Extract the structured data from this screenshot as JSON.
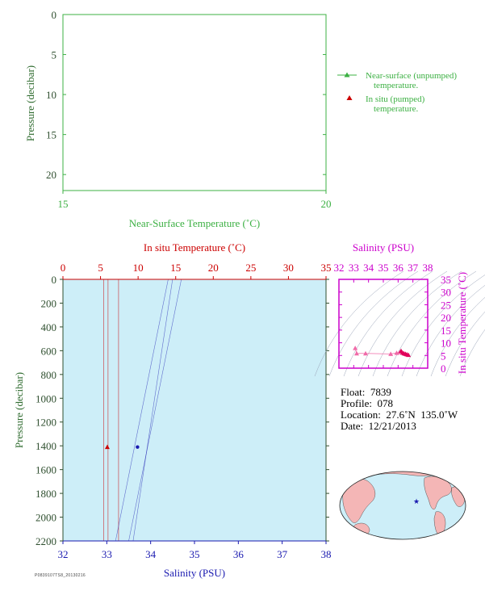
{
  "colors": {
    "green": "#3cb043",
    "red": "#cc0000",
    "blue": "#1a1ab0",
    "magenta": "#cc00cc",
    "plot_bg": "#cdeef8",
    "pink": "#f06aa8",
    "dark_pink": "#e0005a",
    "land": "#f4b6b6",
    "ocean": "#cdeef8"
  },
  "top_plot": {
    "ylabel": "Pressure (decibar)",
    "xlabel": "Near-Surface Temperature (˚C)",
    "y_ticks": [
      "0",
      "5",
      "10",
      "15",
      "20"
    ],
    "x_ticks": [
      "15",
      "20"
    ],
    "legend": {
      "line_label": [
        "Near-surface (unpumped)",
        "temperature."
      ],
      "marker_label": [
        "In situ (pumped)",
        "temperature."
      ]
    }
  },
  "main_plot": {
    "top_axis_label": "In situ Temperature (˚C)",
    "bottom_axis_label": "Salinity (PSU)",
    "ylabel": "Pressure (decibar)",
    "temp_ticks": [
      "0",
      "5",
      "10",
      "15",
      "20",
      "25",
      "30",
      "35"
    ],
    "sal_ticks": [
      "32",
      "33",
      "34",
      "35",
      "36",
      "37",
      "38"
    ],
    "pressure_ticks": [
      "0",
      "200",
      "400",
      "600",
      "800",
      "1000",
      "1200",
      "1400",
      "1600",
      "1800",
      "2000",
      "2200"
    ]
  },
  "ts_plot": {
    "top_label": "Salinity (PSU)",
    "right_label": "In situ Temperature (˚C)",
    "sal_ticks": [
      "32",
      "33",
      "34",
      "35",
      "36",
      "37",
      "38"
    ],
    "temp_ticks": [
      "35",
      "30",
      "25",
      "20",
      "15",
      "10",
      "5",
      "0"
    ]
  },
  "info": {
    "float": "Float:  7839",
    "profile": "Profile:  078",
    "location": "Location:  27.6˚N  135.0˚W",
    "date": "Date:  12/21/2013"
  },
  "footer": "P0839107TS8_20130216",
  "chart_data": [
    {
      "type": "line",
      "title": "",
      "xlabel": "Near-Surface Temperature (˚C)",
      "ylabel": "Pressure (decibar)",
      "xlim": [
        15,
        20
      ],
      "ylim": [
        22,
        0
      ],
      "series": []
    },
    {
      "type": "scatter",
      "xlabel_top": "In situ Temperature (˚C)",
      "xlabel_bottom": "Salinity (PSU)",
      "ylabel": "Pressure (decibar)",
      "temperature_lim": [
        0,
        35
      ],
      "salinity_lim": [
        32,
        38
      ],
      "pressure_lim": [
        2200,
        0
      ],
      "temperature_points": [
        {
          "temperature": 5.9,
          "pressure": 1410
        }
      ],
      "salinity_points": [
        {
          "salinity": 33.7,
          "pressure": 1410
        }
      ],
      "temperature_guide_lines": [
        [
          5.4,
          5.4
        ],
        [
          6.0,
          6.0
        ],
        [
          7.4,
          7.4
        ]
      ],
      "salinity_guide_lines": [
        [
          [
            34.5,
            0
          ],
          [
            33.6,
            2200
          ]
        ],
        [
          [
            34.7,
            0
          ],
          [
            33.5,
            2200
          ]
        ],
        [
          [
            34.4,
            0
          ],
          [
            33.2,
            2200
          ]
        ]
      ]
    },
    {
      "type": "scatter",
      "title": "Salinity (PSU)",
      "xlabel": "Salinity (PSU)",
      "ylabel": "In situ Temperature (˚C)",
      "xlim": [
        32,
        38
      ],
      "ylim": [
        0,
        35
      ],
      "points": [
        {
          "salinity": 33.1,
          "temperature": 7.9
        },
        {
          "salinity": 33.2,
          "temperature": 5.8
        },
        {
          "salinity": 33.8,
          "temperature": 5.8
        },
        {
          "salinity": 35.5,
          "temperature": 5.6
        },
        {
          "salinity": 35.9,
          "temperature": 6.0
        },
        {
          "salinity": 36.1,
          "temperature": 6.3
        },
        {
          "salinity": 36.2,
          "temperature": 6.8
        },
        {
          "salinity": 36.3,
          "temperature": 6.1
        },
        {
          "salinity": 36.4,
          "temperature": 5.8
        },
        {
          "salinity": 36.5,
          "temperature": 5.6
        },
        {
          "salinity": 36.6,
          "temperature": 5.4
        },
        {
          "salinity": 36.7,
          "temperature": 5.2
        }
      ]
    }
  ]
}
